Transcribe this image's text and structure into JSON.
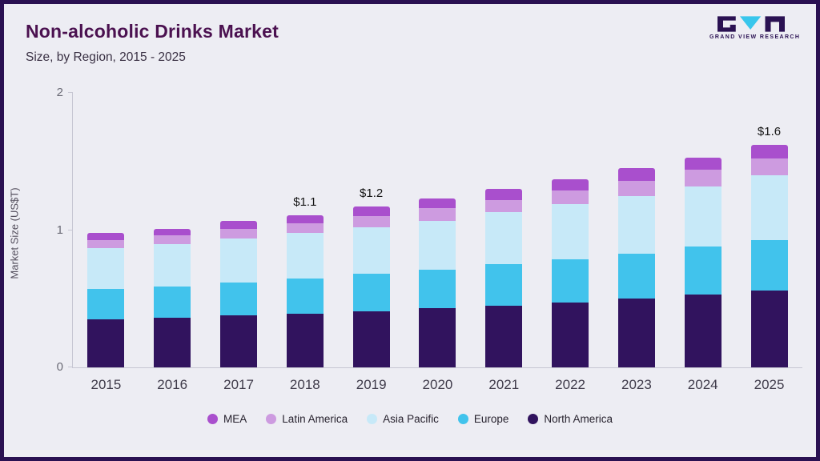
{
  "frame": {
    "background": "#ededf3",
    "border_color": "#2a1152"
  },
  "header": {
    "title": "Non-alcoholic Drinks Market",
    "subtitle": "Size, by Region, 2015 - 2025"
  },
  "logo": {
    "brand": "GRAND VIEW RESEARCH",
    "dark_color": "#2a1152",
    "accent_color": "#38c6ec"
  },
  "chart_data": {
    "type": "bar",
    "stacked": true,
    "title": "Non-alcoholic Drinks Market Size, by Region, 2015 - 2025",
    "xlabel": "",
    "ylabel": "Market Size (US$T)",
    "ylim": [
      0,
      2
    ],
    "yticks": [
      "0",
      "1",
      "2"
    ],
    "grid": false,
    "legend_position": "bottom",
    "categories": [
      "2015",
      "2016",
      "2017",
      "2018",
      "2019",
      "2020",
      "2021",
      "2022",
      "2023",
      "2024",
      "2025"
    ],
    "series": [
      {
        "name": "North America",
        "color": "#31135e",
        "values": [
          0.35,
          0.36,
          0.38,
          0.39,
          0.41,
          0.43,
          0.45,
          0.47,
          0.5,
          0.53,
          0.56
        ]
      },
      {
        "name": "Europe",
        "color": "#41c3ec",
        "values": [
          0.22,
          0.23,
          0.24,
          0.26,
          0.27,
          0.28,
          0.3,
          0.32,
          0.33,
          0.35,
          0.37
        ]
      },
      {
        "name": "Asia Pacific",
        "color": "#c7e9f8",
        "values": [
          0.3,
          0.31,
          0.32,
          0.33,
          0.34,
          0.36,
          0.38,
          0.4,
          0.42,
          0.44,
          0.47
        ]
      },
      {
        "name": "Latin America",
        "color": "#cd9be0",
        "values": [
          0.06,
          0.06,
          0.07,
          0.07,
          0.08,
          0.09,
          0.09,
          0.1,
          0.11,
          0.12,
          0.12
        ]
      },
      {
        "name": "MEA",
        "color": "#a94fcd",
        "values": [
          0.05,
          0.05,
          0.06,
          0.06,
          0.07,
          0.07,
          0.08,
          0.08,
          0.09,
          0.09,
          0.1
        ]
      }
    ],
    "totals": [
      0.98,
      1.01,
      1.07,
      1.11,
      1.17,
      1.23,
      1.3,
      1.37,
      1.45,
      1.53,
      1.62
    ],
    "annotations": [
      {
        "category": "2018",
        "label": "$1.1"
      },
      {
        "category": "2019",
        "label": "$1.2"
      },
      {
        "category": "2025",
        "label": "$1.6"
      }
    ],
    "legend": [
      {
        "label": "MEA",
        "color": "#a94fcd"
      },
      {
        "label": "Latin America",
        "color": "#cd9be0"
      },
      {
        "label": "Asia Pacific",
        "color": "#c7e9f8"
      },
      {
        "label": "Europe",
        "color": "#41c3ec"
      },
      {
        "label": "North America",
        "color": "#31135e"
      }
    ]
  }
}
